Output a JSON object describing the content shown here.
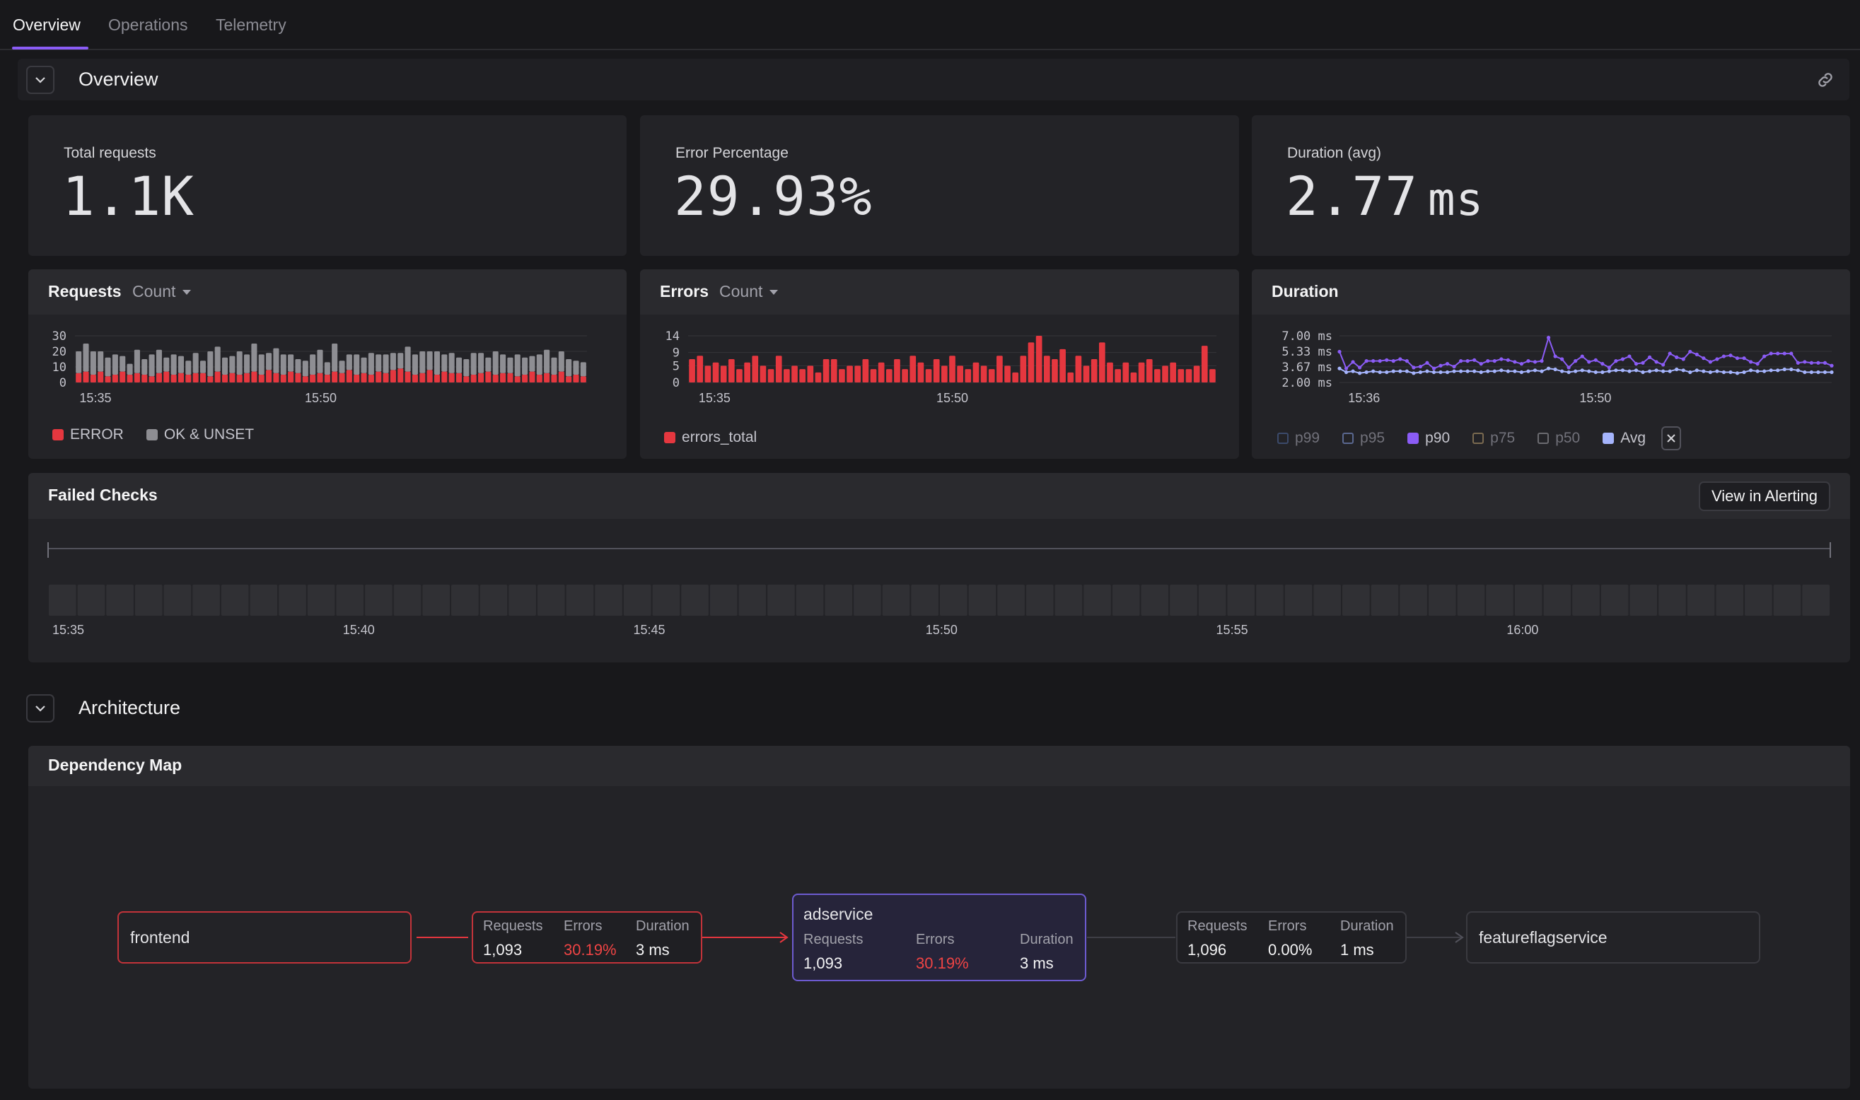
{
  "tabs": [
    {
      "label": "Overview",
      "active": true
    },
    {
      "label": "Operations",
      "active": false
    },
    {
      "label": "Telemetry",
      "active": false
    }
  ],
  "overview": {
    "title": "Overview",
    "stats": [
      {
        "label": "Total requests",
        "value": "1.1K",
        "unit": ""
      },
      {
        "label": "Error Percentage",
        "value": "29.93%",
        "unit": ""
      },
      {
        "label": "Duration (avg)",
        "value": "2.77",
        "unit": "ms"
      }
    ]
  },
  "requests_panel": {
    "title": "Requests",
    "mode": "Count",
    "legend": [
      "ERROR",
      "OK & UNSET"
    ]
  },
  "errors_panel": {
    "title": "Errors",
    "mode": "Count",
    "legend": [
      "errors_total"
    ]
  },
  "duration_panel": {
    "title": "Duration",
    "legend": [
      "p99",
      "p95",
      "p90",
      "p75",
      "p50",
      "Avg"
    ]
  },
  "failed_checks": {
    "title": "Failed Checks",
    "button": "View in Alerting",
    "ticks": [
      "15:35",
      "15:40",
      "15:45",
      "15:50",
      "15:55",
      "16:00"
    ],
    "cells": 62
  },
  "architecture": {
    "title": "Architecture",
    "map_title": "Dependency Map",
    "nodes": {
      "frontend": "frontend",
      "adservice": "adservice",
      "featureflag": "featureflagservice"
    },
    "labels": {
      "requests": "Requests",
      "errors": "Errors",
      "duration": "Duration"
    },
    "edge1": {
      "requests": "1,093",
      "errors": "30.19%",
      "duration": "3 ms"
    },
    "adservice_stats": {
      "requests": "1,093",
      "errors": "30.19%",
      "duration": "3 ms"
    },
    "edge2": {
      "requests": "1,096",
      "errors": "0.00%",
      "duration": "1 ms"
    }
  },
  "colors": {
    "accent": "#8b5cf6",
    "error": "#e5373f",
    "ok": "#8e8e93",
    "p90": "#8b5cf6",
    "avg": "#a5b4fc"
  },
  "chart_data": [
    {
      "type": "bar",
      "title": "Requests",
      "stacked": true,
      "x_ticks": [
        "15:35",
        "15:50"
      ],
      "y_ticks": [
        0,
        10,
        20,
        30
      ],
      "ylim": [
        0,
        30
      ],
      "series": [
        {
          "name": "ERROR",
          "values": [
            6,
            7,
            5,
            7,
            4,
            5,
            7,
            5,
            6,
            5,
            4,
            6,
            7,
            5,
            6,
            5,
            6,
            6,
            4,
            7,
            5,
            6,
            5,
            6,
            7,
            5,
            8,
            6,
            5,
            7,
            6,
            4,
            5,
            6,
            5,
            7,
            6,
            8,
            5,
            6,
            5,
            7,
            6,
            8,
            9,
            7,
            5,
            6,
            8,
            5,
            7,
            6,
            6,
            4,
            5,
            6,
            7,
            5,
            6,
            6,
            4,
            5,
            7,
            5,
            6,
            5,
            7,
            4,
            5,
            4
          ]
        },
        {
          "name": "OK & UNSET",
          "values": [
            14,
            18,
            15,
            13,
            12,
            13,
            10,
            7,
            15,
            10,
            14,
            15,
            9,
            13,
            11,
            9,
            13,
            8,
            16,
            16,
            11,
            11,
            15,
            12,
            18,
            13,
            11,
            16,
            13,
            11,
            9,
            10,
            13,
            15,
            8,
            18,
            8,
            10,
            13,
            10,
            14,
            11,
            12,
            11,
            10,
            16,
            13,
            14,
            12,
            15,
            11,
            13,
            10,
            11,
            14,
            13,
            9,
            15,
            12,
            10,
            14,
            11,
            10,
            13,
            15,
            11,
            13,
            11,
            9,
            9
          ]
        }
      ]
    },
    {
      "type": "bar",
      "title": "Errors",
      "x_ticks": [
        "15:35",
        "15:50"
      ],
      "y_ticks": [
        0,
        5,
        9,
        14
      ],
      "ylim": [
        0,
        14
      ],
      "series": [
        {
          "name": "errors_total",
          "values": [
            7,
            8,
            5,
            6,
            5,
            7,
            4,
            6,
            8,
            5,
            4,
            8,
            4,
            5,
            4,
            5,
            3,
            7,
            7,
            4,
            5,
            5,
            7,
            4,
            6,
            4,
            7,
            4,
            8,
            6,
            4,
            7,
            5,
            8,
            5,
            4,
            6,
            5,
            4,
            8,
            5,
            3,
            8,
            12,
            14,
            8,
            7,
            10,
            3,
            8,
            5,
            7,
            12,
            6,
            4,
            6,
            3,
            6,
            7,
            4,
            5,
            6,
            4,
            4,
            5,
            11,
            4
          ]
        }
      ]
    },
    {
      "type": "line",
      "title": "Duration",
      "x_ticks": [
        "15:36",
        "15:50"
      ],
      "y_ticks": [
        "2.00 ms",
        "3.67 ms",
        "5.33 ms",
        "7.00 ms"
      ],
      "ylim": [
        2.0,
        7.0
      ],
      "series": [
        {
          "name": "p90",
          "values": [
            5.3,
            3.5,
            4.2,
            3.6,
            4.3,
            4.3,
            4.3,
            4.4,
            4.3,
            4.5,
            4.3,
            3.6,
            3.7,
            4.1,
            3.5,
            3.8,
            4.0,
            3.7,
            4.3,
            4.3,
            4.4,
            4.0,
            4.3,
            4.3,
            4.5,
            4.4,
            4.2,
            4.0,
            4.3,
            4.2,
            4.3,
            6.8,
            4.8,
            4.5,
            3.6,
            4.3,
            4.8,
            4.2,
            4.4,
            4.0,
            3.6,
            4.3,
            4.5,
            4.8,
            4.0,
            4.1,
            4.7,
            4.2,
            3.9,
            5.1,
            4.7,
            4.5,
            5.3,
            5.0,
            4.6,
            4.2,
            4.5,
            4.8,
            4.9,
            4.6,
            4.6,
            4.2,
            4.0,
            4.8,
            5.1,
            5.1,
            5.1,
            5.1,
            4.1,
            4.2,
            4.1,
            4.1,
            4.1,
            3.8
          ]
        },
        {
          "name": "Avg",
          "values": [
            3.5,
            3.1,
            3.2,
            3.0,
            3.1,
            3.2,
            3.1,
            3.1,
            3.2,
            3.2,
            3.2,
            3.0,
            3.1,
            3.2,
            3.1,
            3.1,
            3.1,
            3.2,
            3.2,
            3.2,
            3.2,
            3.1,
            3.2,
            3.2,
            3.3,
            3.2,
            3.2,
            3.1,
            3.2,
            3.3,
            3.2,
            3.5,
            3.4,
            3.2,
            3.1,
            3.2,
            3.3,
            3.2,
            3.1,
            3.1,
            3.2,
            3.3,
            3.3,
            3.2,
            3.3,
            3.1,
            3.2,
            3.3,
            3.2,
            3.2,
            3.4,
            3.3,
            3.1,
            3.3,
            3.2,
            3.1,
            3.2,
            3.1,
            3.1,
            3.0,
            3.1,
            3.3,
            3.2,
            3.2,
            3.3,
            3.3,
            3.4,
            3.4,
            3.3,
            3.1,
            3.1,
            3.1,
            3.1,
            3.1
          ]
        }
      ]
    }
  ]
}
